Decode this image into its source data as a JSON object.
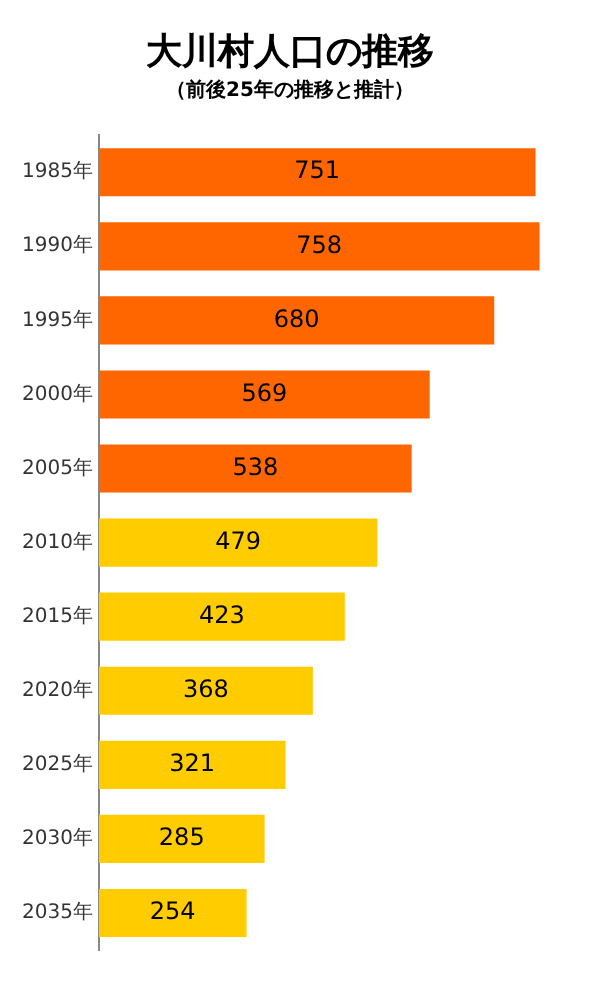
{
  "chart_data": {
    "type": "bar",
    "orientation": "horizontal",
    "title": "大川村人口の推移",
    "subtitle": "（前後25年の推移と推計）",
    "categories": [
      "1985年",
      "1990年",
      "1995年",
      "2000年",
      "2005年",
      "2010年",
      "2015年",
      "2020年",
      "2025年",
      "2030年",
      "2035年"
    ],
    "values": [
      751,
      758,
      680,
      569,
      538,
      479,
      423,
      368,
      321,
      285,
      254
    ],
    "colors": [
      "#ff6600",
      "#ff6600",
      "#ff6600",
      "#ff6600",
      "#ff6600",
      "#ffcc00",
      "#ffcc00",
      "#ffcc00",
      "#ffcc00",
      "#ffcc00",
      "#ffcc00"
    ],
    "data_labels": true,
    "legend": false,
    "grid": false
  }
}
